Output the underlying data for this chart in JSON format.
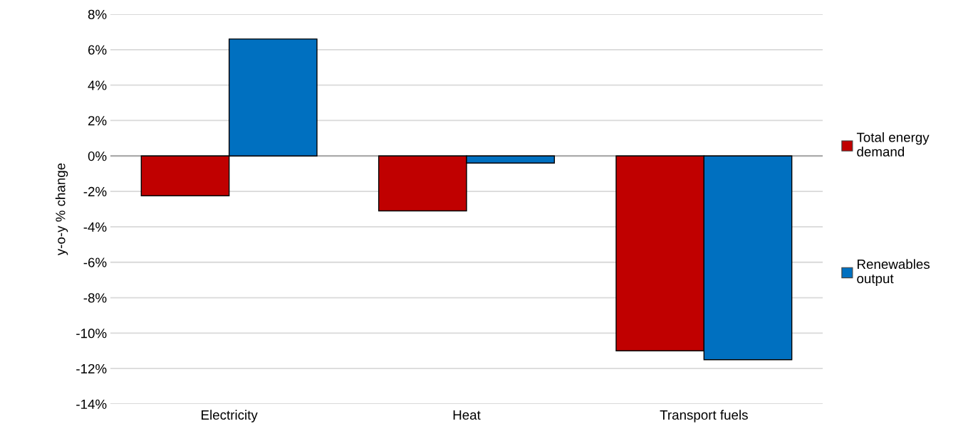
{
  "chart_data": {
    "type": "bar",
    "ylabel": "y-o-y % change",
    "categories": [
      "Electricity",
      "Heat",
      "Transport fuels"
    ],
    "series": [
      {
        "name": "Total energy demand",
        "color": "#c00000",
        "values": [
          -2.25,
          -3.1,
          -11.0
        ]
      },
      {
        "name": "Renewables output",
        "color": "#0070c0",
        "values": [
          6.6,
          -0.4,
          -11.5
        ]
      }
    ],
    "ylim": [
      -14,
      8
    ],
    "yticks": [
      {
        "value": -14,
        "label": "-14%"
      },
      {
        "value": -12,
        "label": "-12%"
      },
      {
        "value": -10,
        "label": "-10%"
      },
      {
        "value": -8,
        "label": "-8%"
      },
      {
        "value": -6,
        "label": "-6%"
      },
      {
        "value": -4,
        "label": "-4%"
      },
      {
        "value": -2,
        "label": "-2%"
      },
      {
        "value": 0,
        "label": "0%"
      },
      {
        "value": 2,
        "label": "2%"
      },
      {
        "value": 4,
        "label": "4%"
      },
      {
        "value": 6,
        "label": "6%"
      },
      {
        "value": 8,
        "label": "8%"
      }
    ],
    "grid": "y",
    "legend": "right"
  }
}
